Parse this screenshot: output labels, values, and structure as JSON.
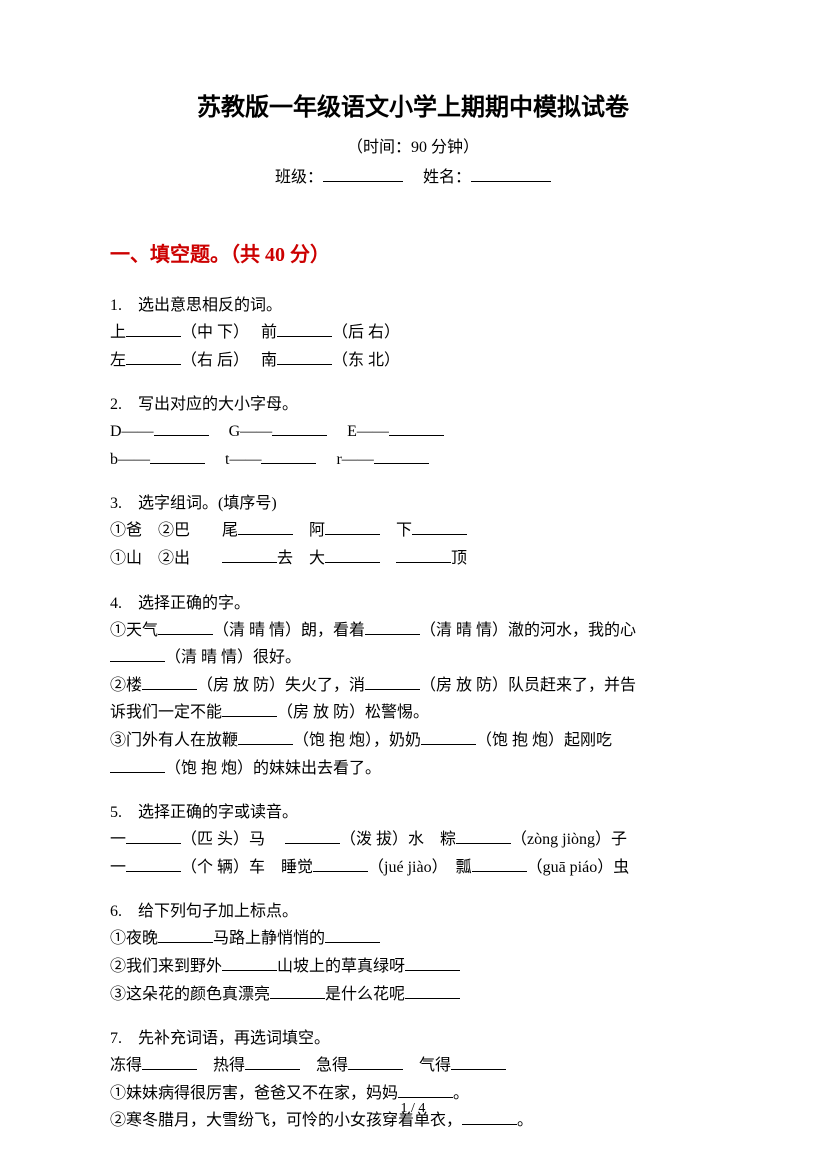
{
  "title": "苏教版一年级语文小学上期期中模拟试卷",
  "subtitle": "（时间：90 分钟）",
  "info": {
    "class_label": "班级：",
    "name_label": "姓名："
  },
  "section1": {
    "title": "一、填空题。（共 40 分）"
  },
  "q1": {
    "num": "1.　",
    "title": "选出意思相反的词。",
    "line1a": "上",
    "line1b": "（中 下）　 前",
    "line1c": "（后 右）",
    "line2a": "左",
    "line2b": "（右 后）　 南",
    "line2c": "（东 北）"
  },
  "q2": {
    "num": "2.　",
    "title": "写出对应的大小字母。",
    "line1a": "D——",
    "line1b": "　 G——",
    "line1c": "　 E——",
    "line2a": "b——",
    "line2b": "　 t——",
    "line2c": "　 r——"
  },
  "q3": {
    "num": "3.　",
    "title": "选字组词。(填序号)",
    "line1a": "①爸　②巴　　尾",
    "line1b": "　阿",
    "line1c": "　下",
    "line2a": "①山　②出　　",
    "line2b": "去　大",
    "line2c": "　",
    "line2d": "顶"
  },
  "q4": {
    "num": "4.　",
    "title": "选择正确的字。",
    "line1a": "①天气",
    "line1b": "（清 晴 情）朗，看着",
    "line1c": "（清 晴 情）澈的河水，我的心",
    "line2a": "",
    "line2b": "（清 晴 情）很好。",
    "line3a": "②楼",
    "line3b": "（房 放 防）失火了，消",
    "line3c": "（房 放 防）队员赶来了，并告",
    "line4a": "诉我们一定不能",
    "line4b": "（房 放 防）松警惕。",
    "line5a": "③门外有人在放鞭",
    "line5b": "（饱 抱 炮），奶奶",
    "line5c": "（饱 抱 炮）起刚吃",
    "line6a": "",
    "line6b": "（饱 抱 炮）的妹妹出去看了。"
  },
  "q5": {
    "num": "5.　",
    "title": "选择正确的字或读音。",
    "line1a": "一",
    "line1b": "（匹 头）马　 ",
    "line1c": "（泼 拔）水　粽",
    "line1d": "（zòng jiòng）子",
    "line2a": "一",
    "line2b": "（个 辆）车　睡觉",
    "line2c": "（jué jiào）　瓢",
    "line2d": "（guā piáo）虫"
  },
  "q6": {
    "num": "6.　",
    "title": "给下列句子加上标点。",
    "line1a": "①夜晚",
    "line1b": "马路上静悄悄的",
    "line2a": "②我们来到野外",
    "line2b": "山坡上的草真绿呀",
    "line3a": "③这朵花的颜色真漂亮",
    "line3b": "是什么花呢"
  },
  "q7": {
    "num": "7.　",
    "title": "先补充词语，再选词填空。",
    "line1a": "冻得",
    "line1b": "　热得",
    "line1c": "　急得",
    "line1d": "　气得",
    "line2a": "①妹妹病得很厉害，爸爸又不在家，妈妈",
    "line2b": "。",
    "line3a": "②寒冬腊月，大雪纷飞，可怜的小女孩穿着单衣，",
    "line3b": "。"
  },
  "pagenum": "1 / 4"
}
